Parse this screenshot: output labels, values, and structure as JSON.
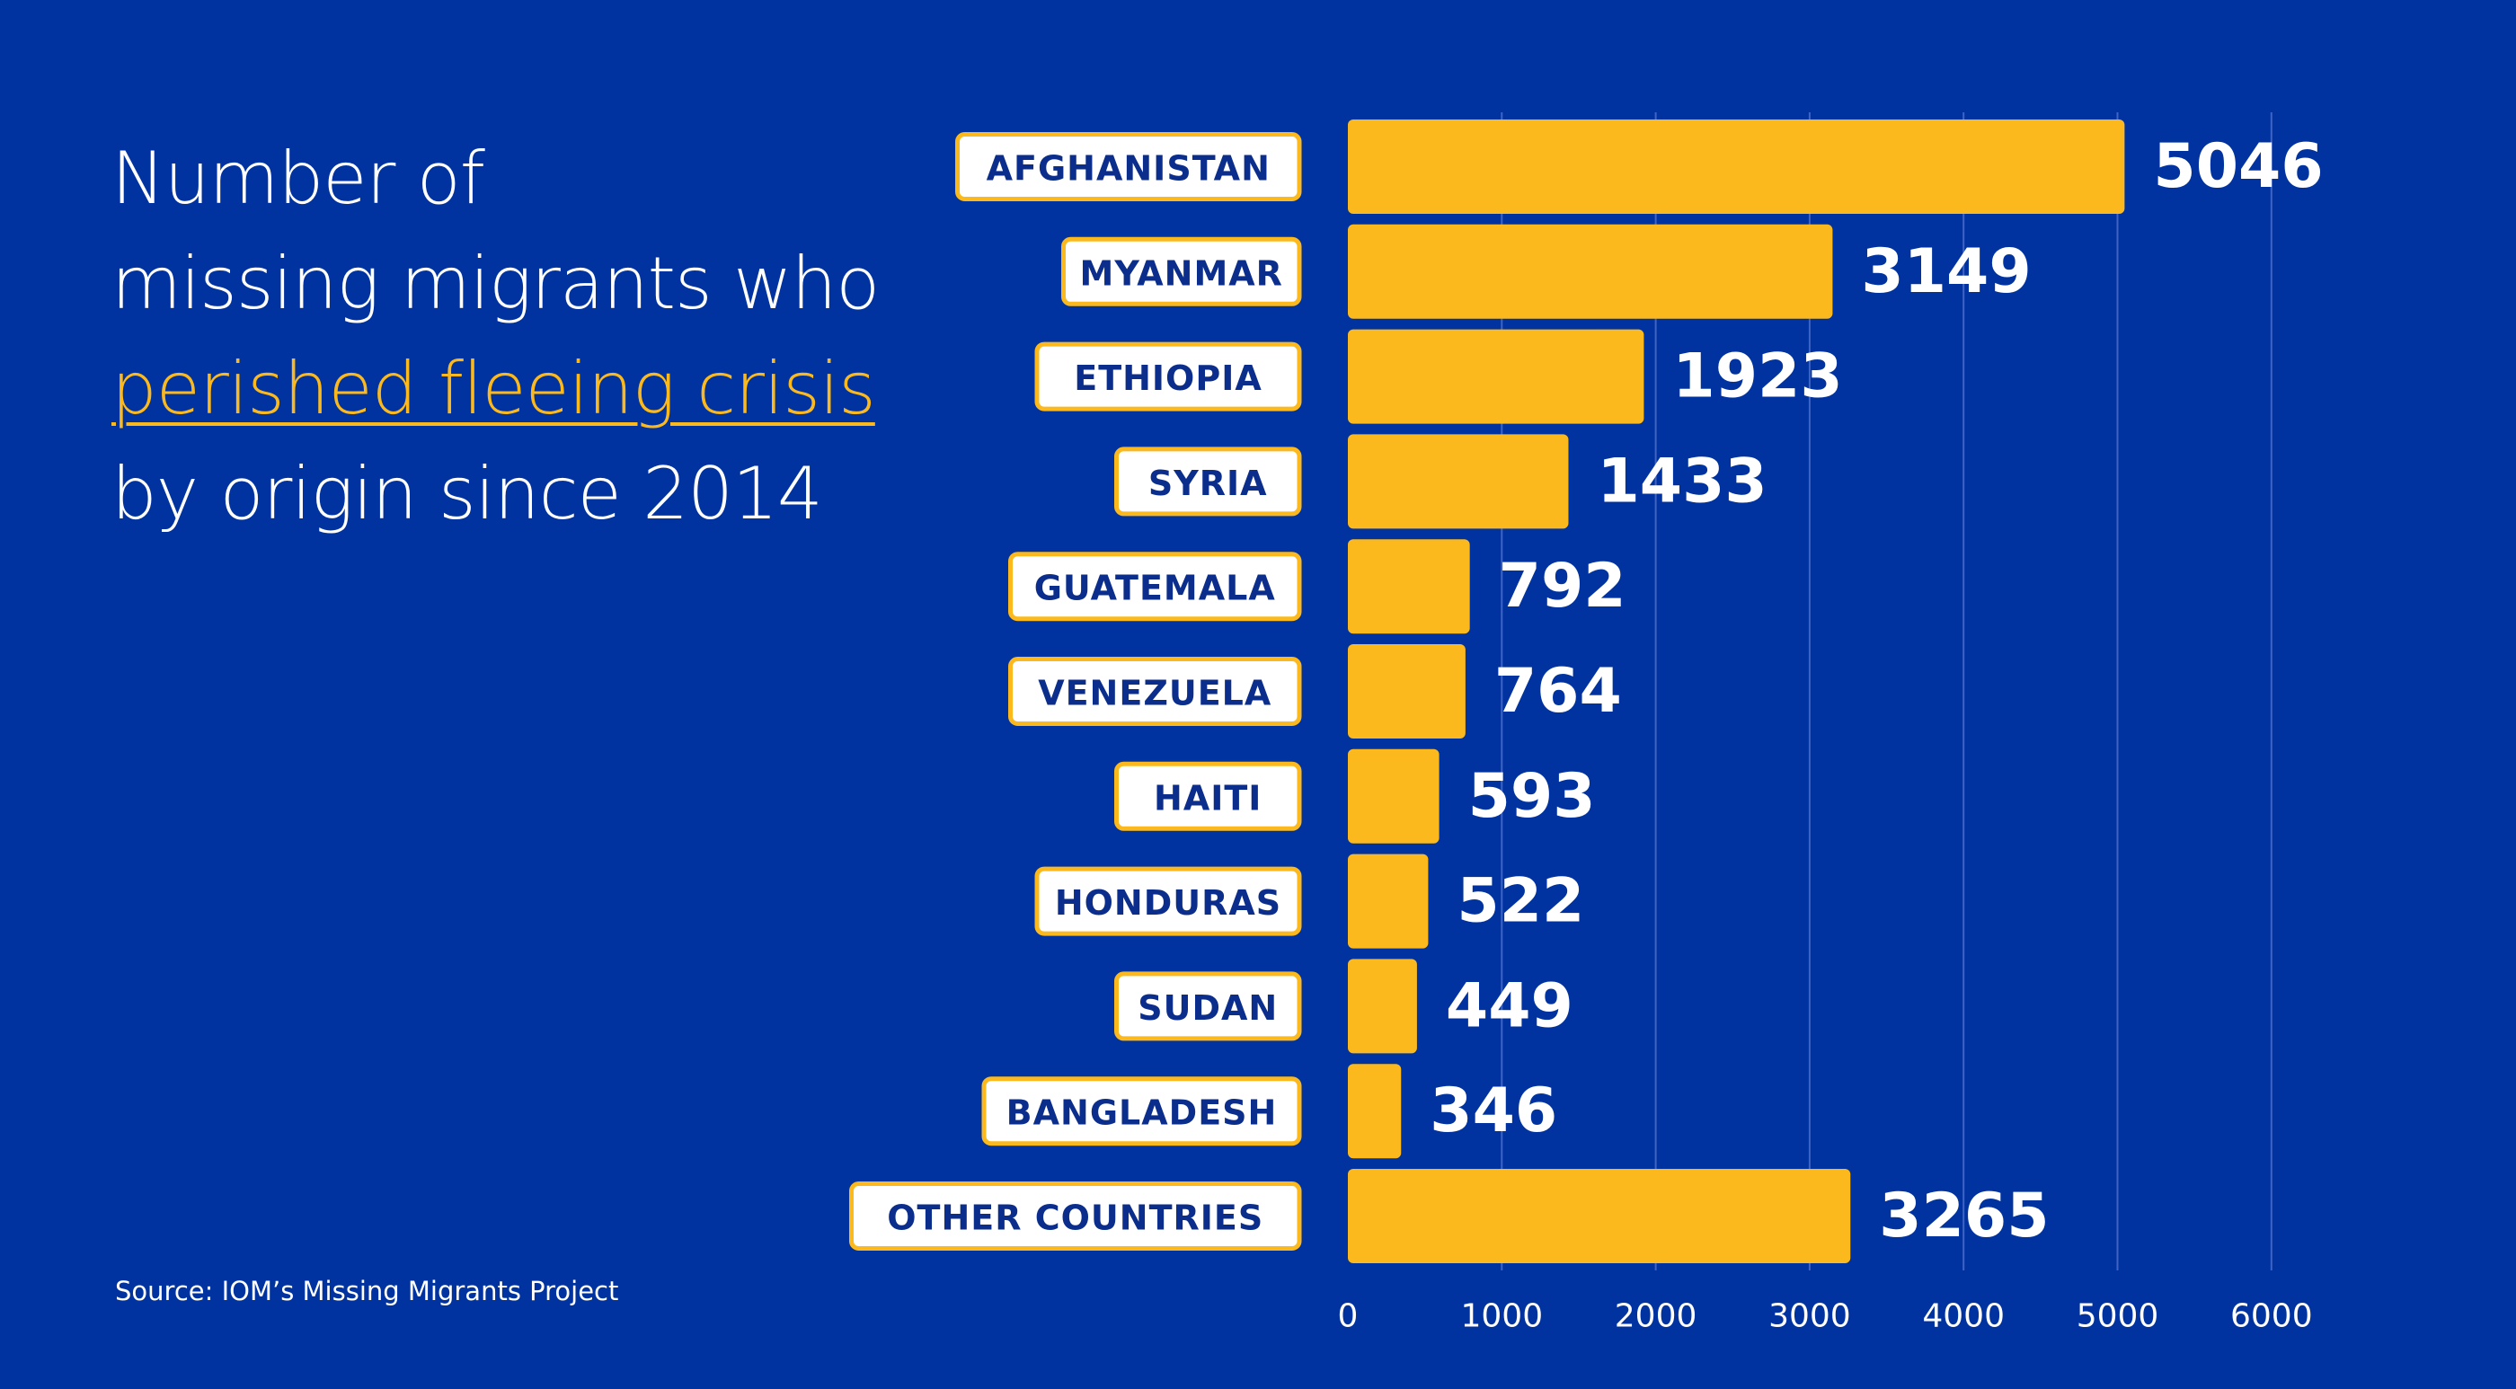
{
  "title": {
    "line1": "Number of",
    "line2": "missing migrants who",
    "line3": "perished fleeing crisis",
    "line4": "by origin since 2014"
  },
  "source": "Source: IOM’s Missing Migrants Project",
  "colors": {
    "background": "#0033a0",
    "bar": "#fbb91e",
    "label_box": "#ffffff",
    "label_text": "#0b2e8c",
    "highlight": "#fbb91e"
  },
  "chart_data": {
    "type": "bar",
    "orientation": "horizontal",
    "categories": [
      "AFGHANISTAN",
      "MYANMAR",
      "ETHIOPIA",
      "SYRIA",
      "GUATEMALA",
      "VENEZUELA",
      "HAITI",
      "HONDURAS",
      "SUDAN",
      "BANGLADESH",
      "OTHER COUNTRIES"
    ],
    "values": [
      5046,
      3149,
      1923,
      1433,
      792,
      764,
      593,
      522,
      449,
      346,
      3265
    ],
    "data_labels": [
      "5046",
      "3149",
      "1923",
      "1433",
      "792",
      "764",
      "593",
      "522",
      "449",
      "346",
      "3265"
    ],
    "xlim": [
      0,
      6000
    ],
    "ticks": [
      0,
      1000,
      2000,
      3000,
      4000,
      5000,
      6000
    ],
    "tick_labels": [
      "0",
      "1000",
      "2000",
      "3000",
      "4000",
      "5000",
      "6000"
    ],
    "grid": true
  }
}
